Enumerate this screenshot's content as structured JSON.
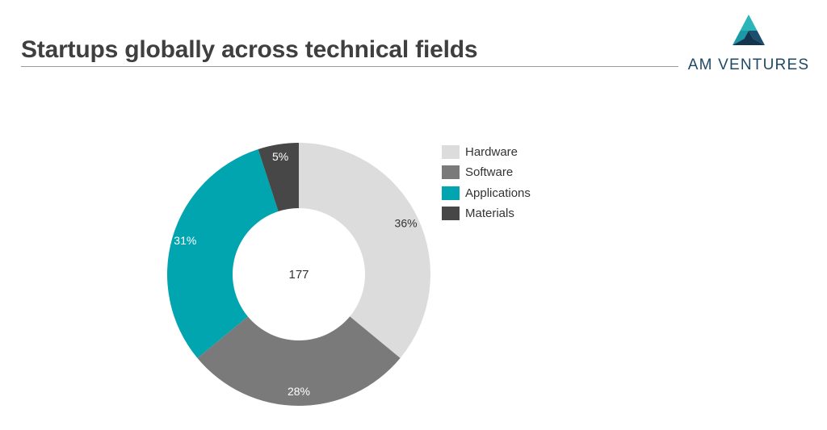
{
  "slide": {
    "title": "Startups globally across technical fields"
  },
  "logo": {
    "text": "AM VENTURES",
    "colors": {
      "top": "#2bb5b8",
      "left": "#1a9aa6",
      "right": "#1c4f6e",
      "bottom": "#13354d"
    }
  },
  "chart_data": {
    "type": "pie",
    "donut": true,
    "title": "",
    "center_label": "177",
    "categories": [
      "Hardware",
      "Software",
      "Applications",
      "Materials"
    ],
    "values": [
      36,
      28,
      31,
      5
    ],
    "labels": [
      "36%",
      "28%",
      "31%",
      "5%"
    ],
    "colors": [
      "#dcdcdc",
      "#7a7a7a",
      "#00a5b0",
      "#474747"
    ],
    "label_colors": [
      "#333333",
      "#ffffff",
      "#ffffff",
      "#ffffff"
    ],
    "start_angle_deg": 0,
    "direction": "clockwise",
    "legend_position": "right"
  }
}
